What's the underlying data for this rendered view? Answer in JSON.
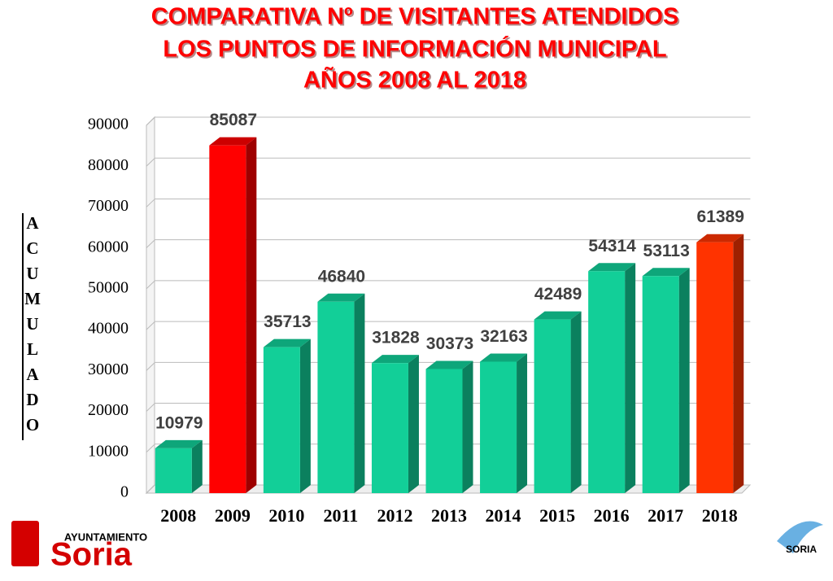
{
  "chart_data": {
    "type": "bar3d",
    "title": [
      "COMPARATIVA Nº DE VISITANTES ATENDIDOS",
      "LOS PUNTOS DE INFORMACIÓN MUNICIPAL",
      "AÑOS 2008 AL 2018"
    ],
    "y_label": "ACUMULADO",
    "categories": [
      "2008",
      "2009",
      "2010",
      "2011",
      "2012",
      "2013",
      "2014",
      "2015",
      "2016",
      "2017",
      "2018"
    ],
    "values": [
      10979,
      85087,
      35713,
      46840,
      31828,
      30373,
      32163,
      42489,
      54314,
      53113,
      61389
    ],
    "colors": [
      "#12cf98",
      "#ff0000",
      "#12cf98",
      "#12cf98",
      "#12cf98",
      "#12cf98",
      "#12cf98",
      "#12cf98",
      "#12cf98",
      "#12cf98",
      "#ff3300"
    ],
    "ylim": [
      0,
      90000
    ],
    "yticks": [
      0,
      10000,
      20000,
      30000,
      40000,
      50000,
      60000,
      70000,
      80000,
      90000
    ],
    "grid": true
  },
  "logo": {
    "top": "AYUNTAMIENTO",
    "name": "Soria",
    "right": "SORIA"
  }
}
